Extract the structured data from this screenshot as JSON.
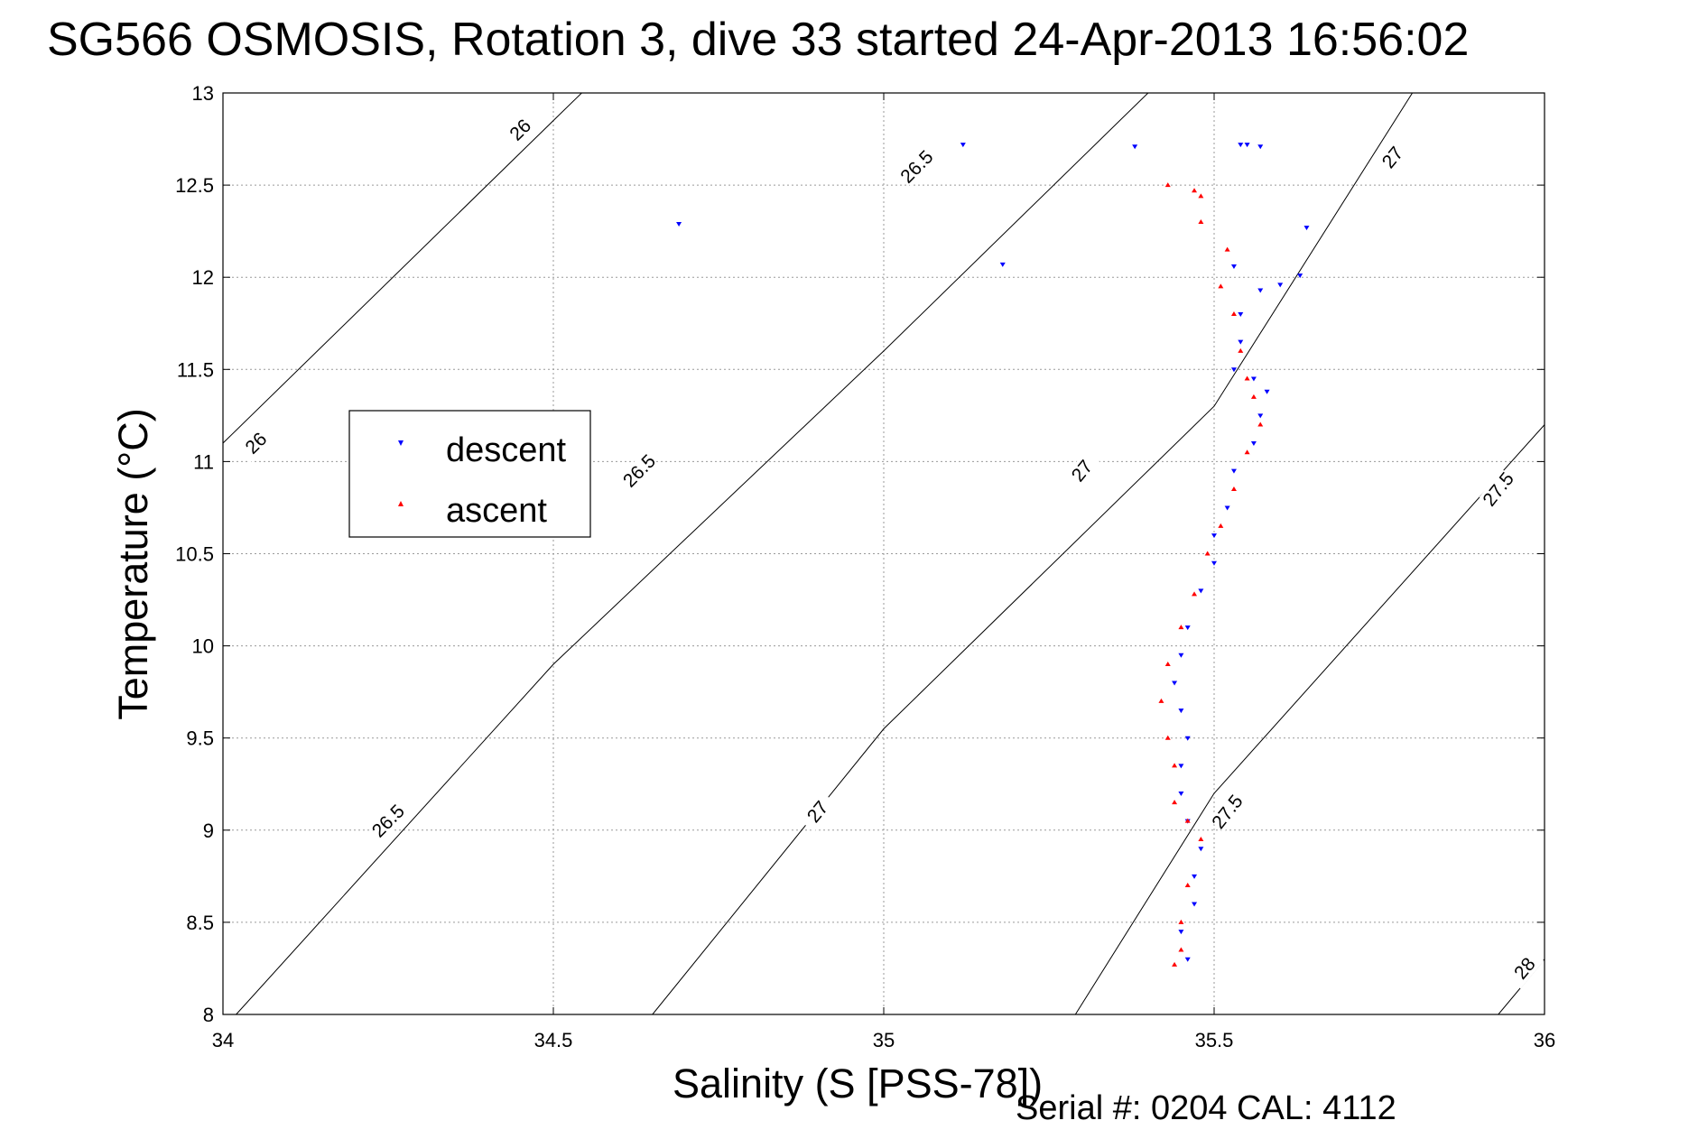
{
  "chart_data": {
    "type": "scatter",
    "title": "SG566 OSMOSIS, Rotation 3, dive 33 started 24-Apr-2013 16:56:02",
    "xlabel": "Salinity (S [PSS-78])",
    "ylabel": "Temperature (°C)",
    "footer": "Serial #: 0204  CAL: 4112",
    "xlim": [
      34,
      36
    ],
    "ylim": [
      8,
      13
    ],
    "xticks": [
      34,
      34.5,
      35,
      35.5,
      36
    ],
    "xtick_labels": [
      "34",
      "34.5",
      "35",
      "35.5",
      "36"
    ],
    "yticks": [
      8,
      8.5,
      9,
      9.5,
      10,
      10.5,
      11,
      11.5,
      12,
      12.5,
      13
    ],
    "ytick_labels": [
      "8",
      "8.5",
      "9",
      "9.5",
      "10",
      "10.5",
      "11",
      "11.5",
      "12",
      "12.5",
      "13"
    ],
    "grid": true,
    "legend_position": "left",
    "density_contours": [
      {
        "value": 26,
        "points": [
          [
            34,
            11.1
          ],
          [
            34.5,
            12.85
          ],
          [
            34.6,
            13.2
          ]
        ],
        "labels": [
          [
            34.05,
            11.1
          ],
          [
            34.45,
            12.8
          ]
        ]
      },
      {
        "value": 26.5,
        "points": [
          [
            34.02,
            8
          ],
          [
            34.5,
            9.9
          ],
          [
            35,
            11.6
          ],
          [
            35.4,
            13.0
          ]
        ],
        "labels": [
          [
            34.25,
            9.05
          ],
          [
            34.63,
            10.95
          ],
          [
            35.05,
            12.6
          ]
        ]
      },
      {
        "value": 27,
        "points": [
          [
            34.65,
            8
          ],
          [
            35,
            9.55
          ],
          [
            35.5,
            11.3
          ],
          [
            35.8,
            13.0
          ]
        ],
        "labels": [
          [
            34.9,
            9.1
          ],
          [
            35.3,
            10.95
          ],
          [
            35.77,
            12.65
          ]
        ]
      },
      {
        "value": 27.5,
        "points": [
          [
            35.29,
            8
          ],
          [
            35.5,
            9.2
          ],
          [
            36,
            11.2
          ]
        ],
        "labels": [
          [
            35.52,
            9.1
          ],
          [
            35.93,
            10.85
          ]
        ]
      },
      {
        "value": 28,
        "points": [
          [
            35.93,
            8
          ],
          [
            36,
            8.3
          ]
        ],
        "labels": [
          [
            35.97,
            8.25
          ]
        ]
      }
    ],
    "series": [
      {
        "name": "descent",
        "color": "#0000ff",
        "marker": "triangle-down",
        "points": [
          [
            34.69,
            12.29
          ],
          [
            35.12,
            12.72
          ],
          [
            35.18,
            12.07
          ],
          [
            35.38,
            12.71
          ],
          [
            35.54,
            12.72
          ],
          [
            35.55,
            12.72
          ],
          [
            35.57,
            12.71
          ],
          [
            35.64,
            12.27
          ],
          [
            35.63,
            12.01
          ],
          [
            35.53,
            12.06
          ],
          [
            35.6,
            11.96
          ],
          [
            35.57,
            11.93
          ],
          [
            35.54,
            11.8
          ],
          [
            35.54,
            11.65
          ],
          [
            35.53,
            11.5
          ],
          [
            35.56,
            11.45
          ],
          [
            35.58,
            11.38
          ],
          [
            35.57,
            11.25
          ],
          [
            35.56,
            11.1
          ],
          [
            35.53,
            10.95
          ],
          [
            35.52,
            10.75
          ],
          [
            35.5,
            10.6
          ],
          [
            35.5,
            10.45
          ],
          [
            35.48,
            10.3
          ],
          [
            35.46,
            10.1
          ],
          [
            35.45,
            9.95
          ],
          [
            35.44,
            9.8
          ],
          [
            35.45,
            9.65
          ],
          [
            35.46,
            9.5
          ],
          [
            35.45,
            9.35
          ],
          [
            35.45,
            9.2
          ],
          [
            35.46,
            9.05
          ],
          [
            35.48,
            8.9
          ],
          [
            35.47,
            8.75
          ],
          [
            35.47,
            8.6
          ],
          [
            35.45,
            8.45
          ],
          [
            35.46,
            8.3
          ]
        ]
      },
      {
        "name": "ascent",
        "color": "#ff0000",
        "marker": "triangle-up",
        "points": [
          [
            35.43,
            12.5
          ],
          [
            35.47,
            12.47
          ],
          [
            35.48,
            12.44
          ],
          [
            35.48,
            12.3
          ],
          [
            35.52,
            12.15
          ],
          [
            35.51,
            11.95
          ],
          [
            35.53,
            11.8
          ],
          [
            35.54,
            11.6
          ],
          [
            35.55,
            11.45
          ],
          [
            35.56,
            11.35
          ],
          [
            35.57,
            11.2
          ],
          [
            35.55,
            11.05
          ],
          [
            35.53,
            10.85
          ],
          [
            35.51,
            10.65
          ],
          [
            35.49,
            10.5
          ],
          [
            35.47,
            10.28
          ],
          [
            35.45,
            10.1
          ],
          [
            35.43,
            9.9
          ],
          [
            35.42,
            9.7
          ],
          [
            35.43,
            9.5
          ],
          [
            35.44,
            9.35
          ],
          [
            35.44,
            9.15
          ],
          [
            35.46,
            9.05
          ],
          [
            35.48,
            8.95
          ],
          [
            35.46,
            8.7
          ],
          [
            35.45,
            8.5
          ],
          [
            35.45,
            8.35
          ],
          [
            35.44,
            8.27
          ]
        ]
      }
    ]
  }
}
